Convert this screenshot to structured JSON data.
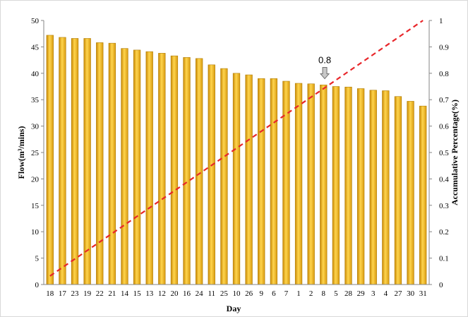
{
  "chart_data": {
    "type": "bar",
    "title": "",
    "xlabel": "Day",
    "ylabel": "Flow(m³/mins)",
    "y2label": "Accumulative Percentage(%)",
    "ylim": [
      0,
      50
    ],
    "y2lim": [
      0,
      1
    ],
    "yticks": [
      "0",
      "5",
      "10",
      "15",
      "20",
      "25",
      "30",
      "35",
      "40",
      "45",
      "50"
    ],
    "y2ticks": [
      "0",
      "0.1",
      "0.2",
      "0.3",
      "0.4",
      "0.5",
      "0.6",
      "0.7",
      "0.8",
      "0.9",
      "1"
    ],
    "grid": false,
    "legend": "none",
    "categories": [
      "18",
      "17",
      "23",
      "19",
      "22",
      "21",
      "14",
      "15",
      "13",
      "12",
      "20",
      "16",
      "24",
      "11",
      "25",
      "10",
      "26",
      "9",
      "6",
      "7",
      "1",
      "2",
      "8",
      "5",
      "28",
      "29",
      "3",
      "4",
      "27",
      "30",
      "31"
    ],
    "series": [
      {
        "type": "bar",
        "axis": "left",
        "color": "#f2b51f",
        "values": [
          47.2,
          46.8,
          46.6,
          46.6,
          45.8,
          45.7,
          44.7,
          44.4,
          44.1,
          43.8,
          43.3,
          43.0,
          42.8,
          41.6,
          40.9,
          40.0,
          39.7,
          39.0,
          39.0,
          38.5,
          38.1,
          38.0,
          37.8,
          37.5,
          37.4,
          37.1,
          36.8,
          36.7,
          35.6,
          34.7,
          33.8
        ]
      },
      {
        "type": "line",
        "axis": "right",
        "color": "#e8262a",
        "dash": "dashed",
        "values": [
          0.0323,
          0.0645,
          0.0968,
          0.129,
          0.1613,
          0.1935,
          0.2258,
          0.2581,
          0.2903,
          0.3226,
          0.3548,
          0.3871,
          0.4194,
          0.4516,
          0.4839,
          0.5161,
          0.5484,
          0.5806,
          0.6129,
          0.6452,
          0.6774,
          0.7097,
          0.7419,
          0.7742,
          0.8065,
          0.8387,
          0.871,
          0.9032,
          0.9355,
          0.9677,
          1.0
        ]
      }
    ],
    "annotation": {
      "text": "0.8",
      "category": "8",
      "arrow": "down-arrow-icon"
    }
  }
}
